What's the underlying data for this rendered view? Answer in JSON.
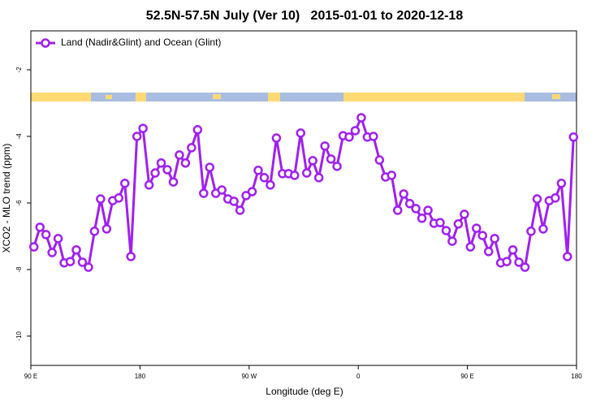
{
  "chart_data": {
    "type": "line",
    "title": "52.5N-57.5N July (Ver 10)   2015-01-01 to 2020-12-18",
    "xlabel": "Longitude (deg E)",
    "ylabel": "XCO2 - MLO trend (ppm)",
    "x": [
      92.5,
      97.5,
      102.5,
      107.5,
      112.5,
      117.5,
      122.5,
      127.5,
      132.5,
      137.5,
      142.5,
      147.5,
      152.5,
      157.5,
      162.5,
      167.5,
      172.5,
      177.5,
      182.5,
      187.5,
      192.5,
      197.5,
      202.5,
      207.5,
      212.5,
      217.5,
      222.5,
      227.5,
      232.5,
      237.5,
      242.5,
      247.5,
      252.5,
      257.5,
      262.5,
      267.5,
      272.5,
      277.5,
      282.5,
      287.5,
      292.5,
      297.5,
      302.5,
      307.5,
      312.5,
      317.5,
      322.5,
      327.5,
      332.5,
      337.5,
      342.5,
      347.5,
      352.5,
      357.5,
      362.5,
      367.5,
      372.5,
      377.5,
      382.5,
      387.5,
      392.5,
      397.5,
      402.5,
      407.5,
      412.5,
      417.5,
      422.5,
      427.5,
      432.5,
      437.5,
      442.5,
      447.5,
      452.5,
      457.5,
      462.5,
      467.5,
      472.5,
      477.5,
      482.5,
      487.5,
      492.5,
      497.5,
      502.5,
      507.5,
      512.5,
      517.5,
      522.5,
      527.5,
      532.5,
      537.5
    ],
    "series": [
      {
        "name": "Land (Nadir&Glint) and Ocean (Glint)",
        "color": "#a020f0",
        "values": [
          -7.32,
          -6.73,
          -6.95,
          -7.49,
          -7.07,
          -7.8,
          -7.76,
          -7.41,
          -7.78,
          -7.93,
          -6.85,
          -5.88,
          -6.78,
          -5.93,
          -5.85,
          -5.41,
          -7.61,
          -4.0,
          -3.76,
          -5.46,
          -5.1,
          -4.8,
          -5.0,
          -5.37,
          -4.56,
          -4.8,
          -4.34,
          -3.8,
          -5.71,
          -4.93,
          -5.71,
          -5.61,
          -5.88,
          -5.95,
          -6.22,
          -5.78,
          -5.66,
          -5.02,
          -5.24,
          -5.46,
          -4.05,
          -5.12,
          -5.12,
          -5.17,
          -3.9,
          -5.1,
          -4.73,
          -5.24,
          -4.29,
          -4.68,
          -4.9,
          -3.98,
          -4.02,
          -3.83,
          -3.44,
          -4.02,
          -4.0,
          -4.71,
          -5.22,
          -5.17,
          -6.22,
          -5.73,
          -6.02,
          -6.17,
          -6.46,
          -6.22,
          -6.61,
          -6.59,
          -6.83,
          -7.15,
          -6.63,
          -6.34,
          -7.32,
          -6.76,
          -6.98,
          -7.46,
          -7.07,
          -7.8,
          -7.76,
          -7.41,
          -7.78,
          -7.93,
          -6.85,
          -5.88,
          -6.78,
          -5.93,
          -5.85,
          -5.41,
          -7.61,
          -4.02
        ]
      }
    ],
    "xlim": [
      90,
      540
    ],
    "xticks": [
      {
        "value": 90,
        "label": "90 E"
      },
      180,
      {
        "value": 270,
        "label": "90 W"
      },
      {
        "value": 360,
        "label": "0"
      },
      {
        "value": 450,
        "label": "90 E"
      },
      {
        "value": 540,
        "label": "180"
      }
    ],
    "ylim": [
      -10.88,
      -0.83
    ],
    "yticks": [
      -2,
      -4,
      -6,
      -8,
      -10
    ],
    "legend": "top-left"
  }
}
